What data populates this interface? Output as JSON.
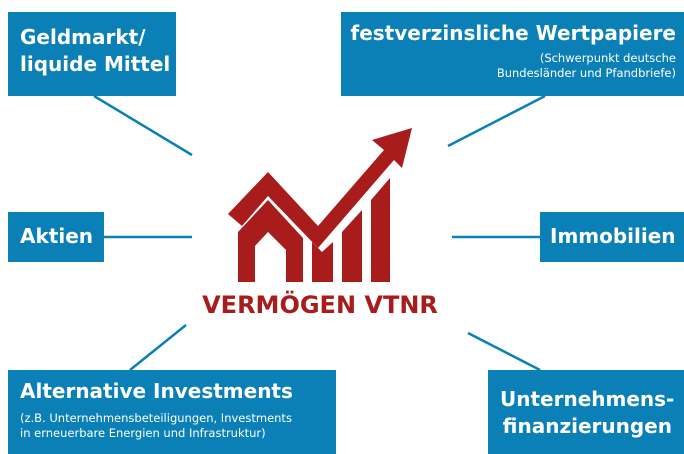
{
  "center": {
    "label": "VERMÖGEN VTNR"
  },
  "nodes": [
    {
      "title": [
        "Geldmarkt/",
        "liquide Mittel"
      ],
      "sub": []
    },
    {
      "title": [
        "festverzinsliche Wertpapiere"
      ],
      "sub": [
        "(Schwerpunkt deutsche",
        "Bundesländer und Pfandbriefe)"
      ]
    },
    {
      "title": [
        "Aktien"
      ],
      "sub": []
    },
    {
      "title": [
        "Immobilien"
      ],
      "sub": []
    },
    {
      "title": [
        "Alternative Investments"
      ],
      "sub": [
        "(z.B. Unternehmensbeteiligungen, Investments",
        "in erneuerbare Energien und Infrastruktur)"
      ]
    },
    {
      "title": [
        "Unternehmens-",
        "finanzierungen"
      ],
      "sub": []
    }
  ]
}
